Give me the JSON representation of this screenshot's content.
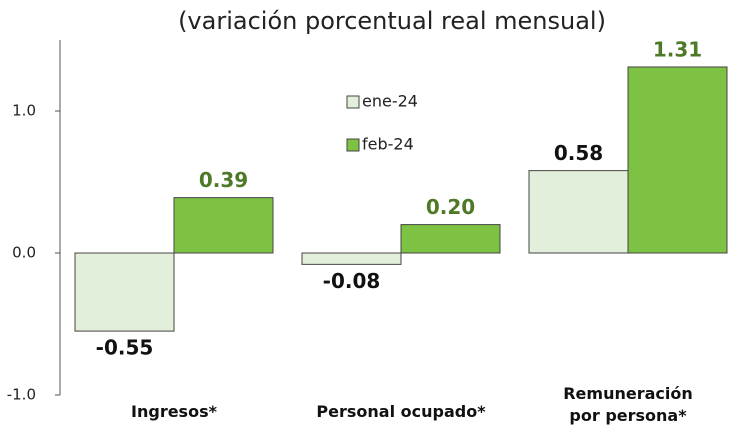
{
  "chart_data": {
    "type": "bar",
    "title": "(variación porcentual real mensual)",
    "categories": [
      "Ingresos*",
      "Personal ocupado*",
      "Remuneración por persona*"
    ],
    "series": [
      {
        "name": "ene-24",
        "color": "#e2efda",
        "label_color": "#111111",
        "values": [
          -0.55,
          -0.08,
          0.58
        ],
        "value_labels": [
          "-0.55",
          "-0.08",
          "0.58"
        ]
      },
      {
        "name": "feb-24",
        "color": "#7dc242",
        "label_color": "#4e7a27",
        "values": [
          0.39,
          0.2,
          1.31
        ],
        "value_labels": [
          "0.39",
          "0.20",
          "1.31"
        ]
      }
    ],
    "ylim": [
      -1,
      1.5
    ],
    "yticks": [
      {
        "value": -1,
        "label": "-1.0"
      },
      {
        "value": 0,
        "label": "0.0"
      },
      {
        "value": 1,
        "label": "1.0"
      }
    ],
    "grid": false
  }
}
